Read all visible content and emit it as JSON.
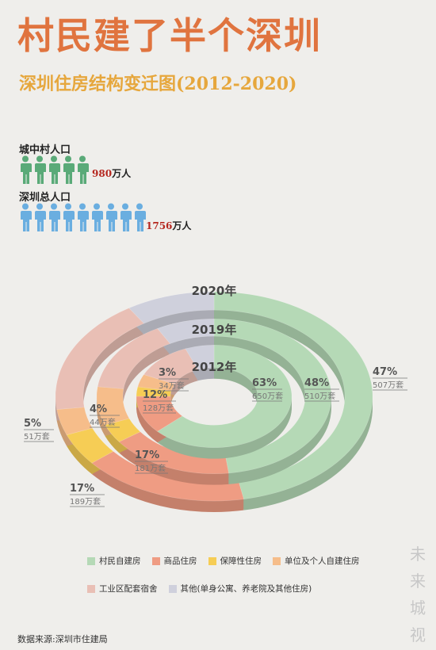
{
  "title": "村民建了半个深圳",
  "subtitle": "深圳住房结构变迁图(2012-2020)",
  "population": {
    "urban_village": {
      "label": "城中村人口",
      "value": "980",
      "unit": "万人",
      "icons": 5,
      "color": "#5aaa78"
    },
    "total": {
      "label": "深圳总人口",
      "value": "1756",
      "unit": "万人",
      "icons": 9,
      "color": "#6aaee0"
    }
  },
  "chart_data": {
    "type": "donut",
    "rings": [
      {
        "year": "2012年",
        "segments": [
          {
            "pct": "63%",
            "units": "650万套",
            "value": 63
          },
          {
            "pct": "12%",
            "units": "128万套",
            "value": 12
          },
          {
            "pct": "3%",
            "units": "34万套",
            "value": 3
          }
        ]
      },
      {
        "year": "2019年",
        "segments": [
          {
            "pct": "48%",
            "units": "510万套",
            "value": 48
          },
          {
            "pct": "17%",
            "units": "181万套",
            "value": 17
          },
          {
            "pct": "4%",
            "units": "44万套",
            "value": 4
          }
        ]
      },
      {
        "year": "2020年",
        "segments": [
          {
            "pct": "47%",
            "units": "507万套",
            "value": 47
          },
          {
            "pct": "17%",
            "units": "189万套",
            "value": 17
          },
          {
            "pct": "5%",
            "units": "51万套",
            "value": 5
          }
        ]
      }
    ],
    "legend": [
      {
        "label": "村民自建房",
        "color": "#b5d9b6"
      },
      {
        "label": "商品住房",
        "color": "#ef9c83"
      },
      {
        "label": "保障性住房",
        "color": "#f6cd55"
      },
      {
        "label": "单位及个人自建住房",
        "color": "#f6bd8a"
      },
      {
        "label": "工业区配套宿舍",
        "color": "#e9bfb5"
      },
      {
        "label": "其他(单身公寓、养老院及其他住房)",
        "color": "#cfd0dc"
      }
    ]
  },
  "watermark": [
    "未",
    "来",
    "城",
    "视"
  ],
  "source": "数据来源:深圳市住建局"
}
